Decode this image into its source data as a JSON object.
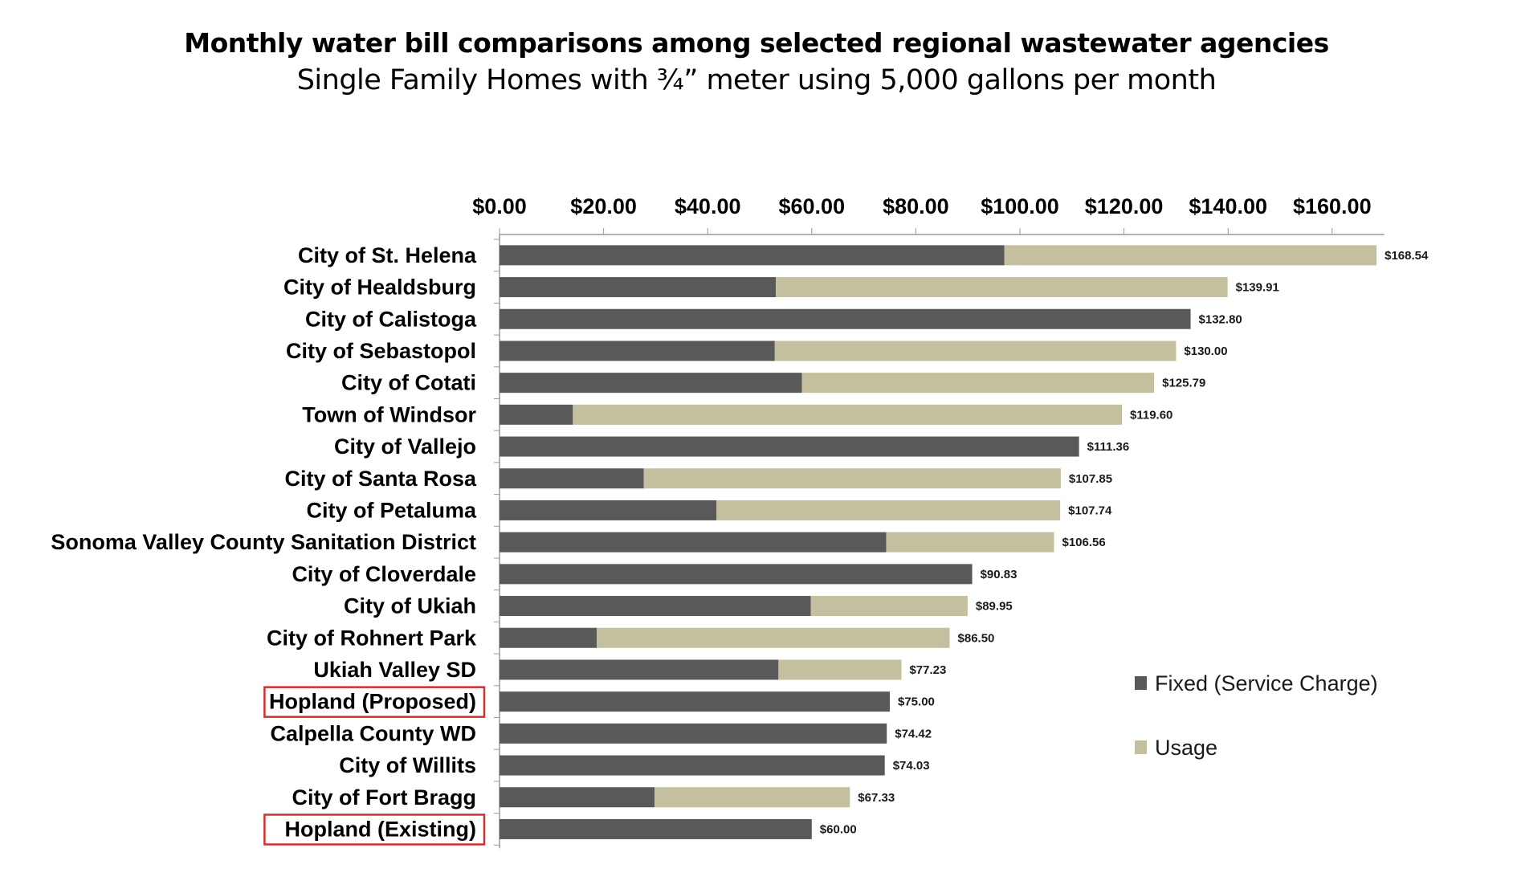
{
  "chart_data": {
    "type": "bar",
    "orientation": "horizontal",
    "stacked": true,
    "title": "Monthly water bill comparisons among selected regional wastewater agencies",
    "subtitle": "Single Family Homes with ¾” meter using 5,000 gallons per month",
    "xlabel": "",
    "ylabel": "",
    "xlim": [
      0,
      170
    ],
    "x_ticks": [
      "$0.00",
      "$20.00",
      "$40.00",
      "$60.00",
      "$80.00",
      "$100.00",
      "$120.00",
      "$140.00",
      "$160.00"
    ],
    "x_tick_values": [
      0,
      20,
      40,
      60,
      80,
      100,
      120,
      140,
      160
    ],
    "x_axis_position": "top",
    "grid": false,
    "legend_position": "right",
    "colors": {
      "fixed": "#595959",
      "usage": "#c4bf9f",
      "highlight": "#d03030",
      "axis": "#999999"
    },
    "categories": [
      "City of St. Helena",
      "City of Healdsburg",
      "City of Calistoga",
      "City of Sebastopol",
      "City of Cotati",
      "Town of Windsor",
      "City of Vallejo",
      "City of Santa Rosa",
      "City of Petaluma",
      "Sonoma Valley County Sanitation District",
      "City of Cloverdale",
      "City of Ukiah",
      "City of Rohnert Park",
      "Ukiah Valley SD",
      "Hopland (Proposed)",
      "Calpella County WD",
      "City of Willits",
      "City of Fort Bragg",
      "Hopland (Existing)"
    ],
    "series": [
      {
        "name": "Fixed (Service Charge)",
        "values": [
          97.0,
          53.1,
          132.8,
          52.9,
          58.1,
          14.1,
          111.36,
          27.7,
          41.7,
          74.3,
          90.83,
          59.8,
          18.7,
          53.6,
          75.0,
          74.42,
          74.03,
          29.8,
          60.0
        ]
      },
      {
        "name": "Usage",
        "values": [
          71.54,
          86.81,
          0,
          77.1,
          67.69,
          105.5,
          0,
          80.15,
          66.04,
          32.26,
          0,
          30.15,
          67.8,
          23.63,
          0,
          0,
          0,
          37.53,
          0
        ]
      }
    ],
    "totals": [
      168.54,
      139.91,
      132.8,
      130.0,
      125.79,
      119.6,
      111.36,
      107.85,
      107.74,
      106.56,
      90.83,
      89.95,
      86.5,
      77.23,
      75.0,
      74.42,
      74.03,
      67.33,
      60.0
    ],
    "total_labels": [
      "$168.54",
      "$139.91",
      "$132.80",
      "$130.00",
      "$125.79",
      "$119.60",
      "$111.36",
      "$107.85",
      "$107.74",
      "$106.56",
      "$90.83",
      "$89.95",
      "$86.50",
      "$77.23",
      "$75.00",
      "$74.42",
      "$74.03",
      "$67.33",
      "$60.00"
    ],
    "highlighted": [
      "Hopland (Proposed)",
      "Hopland (Existing)"
    ],
    "legend": [
      "Fixed (Service Charge)",
      "Usage"
    ]
  }
}
